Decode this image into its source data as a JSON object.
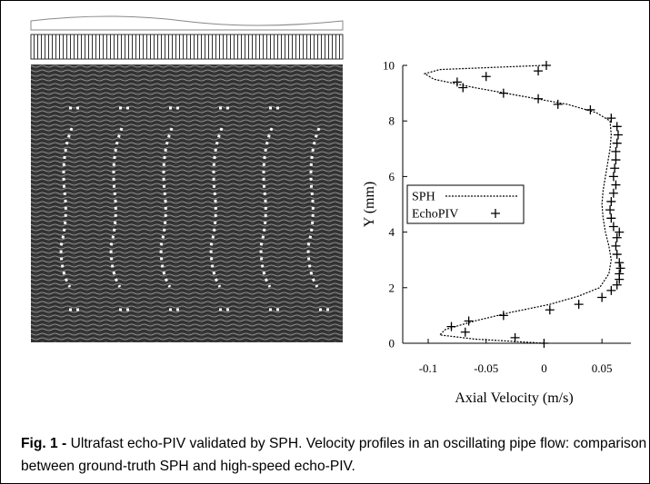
{
  "chart_data": {
    "type": "scatter-line",
    "xlabel": "Axial Velocity (m/s)",
    "ylabel": "Y (mm)",
    "xlim": [
      -0.122,
      0.075
    ],
    "ylim": [
      0,
      10
    ],
    "xticks": [
      -0.1,
      -0.05,
      0,
      0.05
    ],
    "yticks": [
      0,
      2,
      4,
      6,
      8,
      10
    ],
    "legend": "center-left",
    "series": [
      {
        "name": "SPH",
        "kind": "line",
        "color": "#000000",
        "x": [
          0,
          -0.06,
          -0.09,
          -0.085,
          -0.06,
          -0.03,
          0.005,
          0.03,
          0.048,
          0.056,
          0.058,
          0.056,
          0.053,
          0.051,
          0.05,
          0.051,
          0.053,
          0.055,
          0.057,
          0.058,
          0.057,
          0.045,
          0.02,
          -0.02,
          -0.06,
          -0.095,
          -0.103,
          -0.09,
          0
        ],
        "y": [
          0,
          0.15,
          0.3,
          0.5,
          0.8,
          1.1,
          1.4,
          1.7,
          2.0,
          2.5,
          3.0,
          3.5,
          4.0,
          4.5,
          5.0,
          5.5,
          6.0,
          6.5,
          7.0,
          7.5,
          8.0,
          8.3,
          8.6,
          8.9,
          9.2,
          9.5,
          9.7,
          9.85,
          10
        ]
      },
      {
        "name": "EchoPIV",
        "kind": "points",
        "color": "#000000",
        "x": [
          0,
          -0.025,
          -0.068,
          -0.08,
          -0.065,
          -0.035,
          0.005,
          0.03,
          0.05,
          0.058,
          0.063,
          0.065,
          0.065,
          0.066,
          0.065,
          0.063,
          0.062,
          0.063,
          0.065,
          0.06,
          0.058,
          0.057,
          0.058,
          0.06,
          0.062,
          0.06,
          0.061,
          0.062,
          0.062,
          0.063,
          0.064,
          0.063,
          0.058,
          0.04,
          0.012,
          -0.005,
          -0.035,
          -0.07,
          -0.075,
          -0.05,
          -0.005,
          0.002
        ],
        "y": [
          0,
          0.2,
          0.4,
          0.6,
          0.8,
          1.0,
          1.2,
          1.4,
          1.65,
          1.9,
          2.1,
          2.3,
          2.5,
          2.7,
          2.9,
          3.2,
          3.5,
          3.8,
          4.0,
          4.2,
          4.5,
          4.8,
          5.1,
          5.4,
          5.7,
          6.0,
          6.3,
          6.6,
          6.9,
          7.2,
          7.5,
          7.8,
          8.1,
          8.4,
          8.6,
          8.8,
          9.0,
          9.2,
          9.4,
          9.6,
          9.8,
          10.0
        ]
      }
    ]
  },
  "caption": {
    "label": "Fig. 1 -",
    "text": "Ultrafast echo-PIV validated by SPH. Velocity profiles in an oscillating pipe flow: comparison between ground-truth SPH and high-speed echo-PIV."
  }
}
